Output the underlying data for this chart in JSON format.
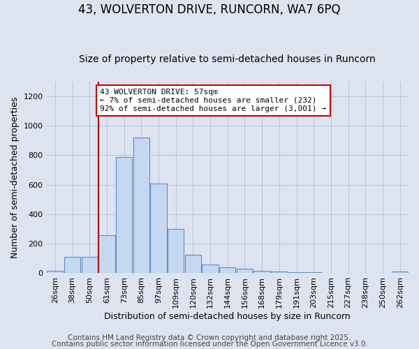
{
  "title": "43, WOLVERTON DRIVE, RUNCORN, WA7 6PQ",
  "subtitle": "Size of property relative to semi-detached houses in Runcorn",
  "xlabel": "Distribution of semi-detached houses by size in Runcorn",
  "ylabel": "Number of semi-detached properties",
  "categories": [
    "26sqm",
    "38sqm",
    "50sqm",
    "61sqm",
    "73sqm",
    "85sqm",
    "97sqm",
    "109sqm",
    "120sqm",
    "132sqm",
    "144sqm",
    "156sqm",
    "168sqm",
    "179sqm",
    "191sqm",
    "203sqm",
    "215sqm",
    "227sqm",
    "238sqm",
    "250sqm",
    "262sqm"
  ],
  "values": [
    15,
    110,
    110,
    260,
    790,
    920,
    610,
    300,
    125,
    60,
    40,
    30,
    15,
    10,
    5,
    8,
    2,
    0,
    0,
    0,
    10
  ],
  "bar_color": "#c5d8ef",
  "bar_edge_color": "#5b8fc9",
  "vline_color": "#aa0000",
  "annotation_text": "43 WOLVERTON DRIVE: 57sqm\n← 7% of semi-detached houses are smaller (232)\n92% of semi-detached houses are larger (3,001) →",
  "annotation_box_facecolor": "#ffffff",
  "annotation_box_edgecolor": "#cc0000",
  "ylim": [
    0,
    1300
  ],
  "yticks": [
    0,
    200,
    400,
    600,
    800,
    1000,
    1200
  ],
  "background_color": "#dde4f0",
  "grid_color": "#b8c4d8",
  "footer_line1": "Contains HM Land Registry data © Crown copyright and database right 2025.",
  "footer_line2": "Contains public sector information licensed under the Open Government Licence v3.0.",
  "title_fontsize": 12,
  "subtitle_fontsize": 10,
  "annotation_fontsize": 8,
  "axis_label_fontsize": 9,
  "tick_fontsize": 8,
  "footer_fontsize": 7.5
}
